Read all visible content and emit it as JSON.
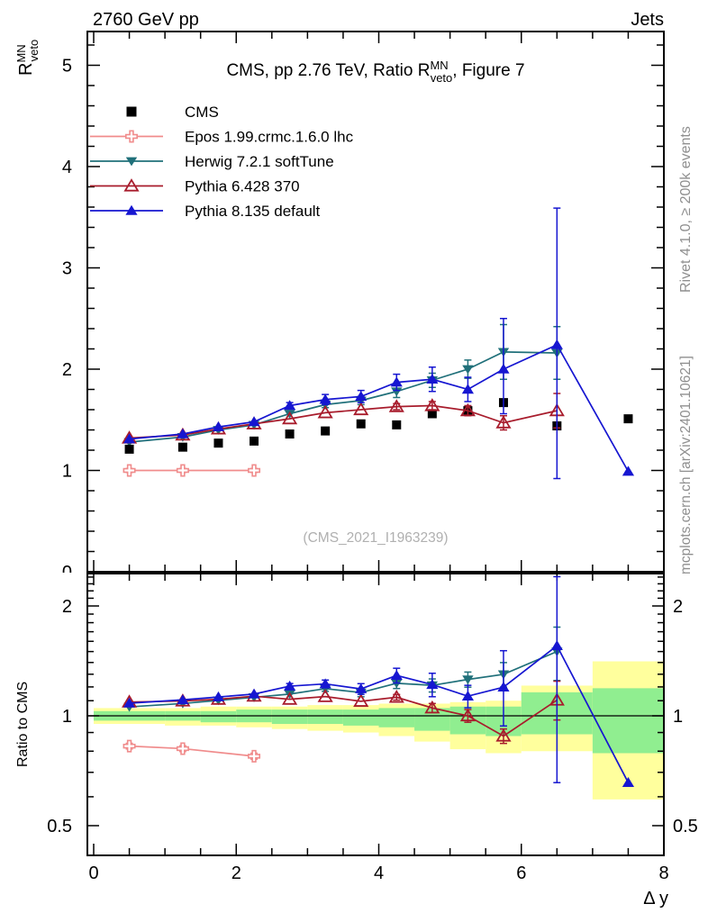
{
  "header": {
    "left": "2760 GeV pp",
    "right": "Jets"
  },
  "title": {
    "pre": "CMS, pp 2.76 TeV, Ratio R",
    "sup": "MN",
    "sub": "veto",
    "post": ", Figure 7"
  },
  "axis_labels": {
    "y_main": {
      "pre": "R",
      "sup": "MN",
      "sub": "veto"
    },
    "y_ratio": "Ratio to CMS",
    "x": "Δ y"
  },
  "credits": {
    "rivet": "Rivet 4.1.0, ≥ 200k events",
    "mcplots": "mcplots.cern.ch [arXiv:2401.10621]"
  },
  "watermark": "(CMS_2021_I1963239)",
  "colors": {
    "cms": "#000000",
    "epos": "#f08c8c",
    "herwig": "#20707a",
    "pythia6": "#a81c2c",
    "pythia8": "#1616d1",
    "band_green": "#90ee90",
    "band_yellow": "#ffff9d",
    "frame": "#000000"
  },
  "chart_data": {
    "type": "line",
    "title": "CMS, pp 2.76 TeV, Ratio R_veto^MN, Figure 7",
    "xlabel": "Δ y",
    "ylabel": "R_veto^MN",
    "ylabel_ratio": "Ratio to CMS",
    "xlim": [
      -0.09,
      8.03
    ],
    "x_ticks_major": [
      0,
      2,
      4,
      6,
      8
    ],
    "x_minor_step": 0.5,
    "main_panel": {
      "ylim": [
        0,
        5.33
      ],
      "yticks": [
        0,
        1,
        2,
        3,
        4,
        5
      ],
      "y_minor_step": 0.2,
      "grid": false
    },
    "ratio_panel": {
      "scale": "log2",
      "ylim": [
        0.415,
        2.45
      ],
      "yticks": [
        0.5,
        1,
        2
      ],
      "ytick_labels": [
        "0.5",
        "1",
        "2"
      ],
      "minor_ticks": [
        0.6,
        0.7,
        0.8,
        0.9,
        1.1,
        1.2,
        1.3,
        1.4,
        1.5,
        1.6,
        1.7,
        1.8,
        1.9,
        2.1,
        2.2,
        2.3,
        2.4
      ],
      "reference_line": 1.0
    },
    "legend_position": "top-left-inside",
    "series": [
      {
        "name": "CMS",
        "color": "#000000",
        "marker": "square-filled",
        "line": false,
        "x": [
          0.5,
          1.25,
          1.75,
          2.25,
          2.75,
          3.25,
          3.75,
          4.25,
          4.75,
          5.25,
          5.75,
          6.5,
          7.5
        ],
        "y": [
          1.21,
          1.23,
          1.27,
          1.29,
          1.36,
          1.39,
          1.46,
          1.45,
          1.56,
          1.59,
          1.67,
          1.44,
          1.51
        ],
        "yerr": [
          [
            0,
            0
          ],
          [
            0,
            0
          ],
          [
            0,
            0
          ],
          [
            0,
            0
          ],
          [
            0,
            0
          ],
          [
            0,
            0
          ],
          [
            0,
            0
          ],
          [
            0,
            0
          ],
          [
            0,
            0
          ],
          [
            0,
            0
          ],
          [
            0,
            0
          ],
          [
            0,
            0
          ],
          [
            0,
            0
          ]
        ],
        "ratio": null
      },
      {
        "name": "Epos 1.99.crmc.1.6.0 lhc",
        "color": "#f08c8c",
        "marker": "cross-open",
        "line": true,
        "x": [
          0.5,
          1.25,
          2.25
        ],
        "y": [
          1.0,
          1.0,
          1.0
        ],
        "yerr": [
          [
            0.02,
            0.02
          ],
          [
            0.02,
            0.02
          ],
          [
            0.02,
            0.02
          ]
        ],
        "ratio": [
          0.826,
          0.813,
          0.775
        ],
        "ratio_err": [
          [
            0.015,
            0.015
          ],
          [
            0.015,
            0.015
          ],
          [
            0.015,
            0.015
          ]
        ]
      },
      {
        "name": "Herwig 7.2.1 softTune",
        "color": "#20707a",
        "marker": "triangle-down-filled",
        "line": true,
        "x": [
          0.5,
          1.25,
          1.75,
          2.25,
          2.75,
          3.25,
          3.75,
          4.25,
          4.75,
          5.25,
          5.75,
          6.5
        ],
        "y": [
          1.28,
          1.33,
          1.4,
          1.45,
          1.56,
          1.65,
          1.69,
          1.78,
          1.89,
          2.0,
          2.17,
          2.16
        ],
        "yerr": [
          [
            0,
            0
          ],
          [
            0,
            0
          ],
          [
            0,
            0
          ],
          [
            0,
            0
          ],
          [
            0,
            0
          ],
          [
            0.03,
            0.03
          ],
          [
            0.04,
            0.04
          ],
          [
            0.06,
            0.06
          ],
          [
            0.07,
            0.07
          ],
          [
            0.09,
            0.09
          ],
          [
            0.27,
            0.27
          ],
          [
            0.26,
            0.26
          ]
        ],
        "ratio": [
          1.058,
          1.081,
          1.102,
          1.124,
          1.147,
          1.187,
          1.158,
          1.228,
          1.212,
          1.258,
          1.299,
          1.5
        ],
        "ratio_err": [
          [
            0,
            0
          ],
          [
            0,
            0
          ],
          [
            0,
            0
          ],
          [
            0,
            0
          ],
          [
            0,
            0
          ],
          [
            0.02,
            0.02
          ],
          [
            0.03,
            0.03
          ],
          [
            0.04,
            0.04
          ],
          [
            0.05,
            0.05
          ],
          [
            0.06,
            0.06
          ],
          [
            0.1,
            0.1
          ],
          [
            0.25,
            0.25
          ]
        ]
      },
      {
        "name": "Pythia 6.428 370",
        "color": "#a81c2c",
        "marker": "triangle-up-open",
        "line": true,
        "x": [
          0.5,
          1.25,
          1.75,
          2.25,
          2.75,
          3.25,
          3.75,
          4.25,
          4.75,
          5.25,
          5.75,
          6.5
        ],
        "y": [
          1.32,
          1.35,
          1.41,
          1.46,
          1.51,
          1.57,
          1.6,
          1.63,
          1.64,
          1.59,
          1.47,
          1.59
        ],
        "yerr": [
          [
            0,
            0
          ],
          [
            0,
            0
          ],
          [
            0,
            0
          ],
          [
            0,
            0
          ],
          [
            0,
            0
          ],
          [
            0,
            0
          ],
          [
            0,
            0
          ],
          [
            0.03,
            0.03
          ],
          [
            0.04,
            0.04
          ],
          [
            0.05,
            0.05
          ],
          [
            0.07,
            0.07
          ],
          [
            0.17,
            0.17
          ]
        ],
        "ratio": [
          1.091,
          1.098,
          1.11,
          1.132,
          1.11,
          1.129,
          1.096,
          1.124,
          1.051,
          1.0,
          0.88,
          1.104
        ],
        "ratio_err": [
          [
            0,
            0
          ],
          [
            0,
            0
          ],
          [
            0,
            0
          ],
          [
            0,
            0
          ],
          [
            0,
            0
          ],
          [
            0,
            0
          ],
          [
            0,
            0
          ],
          [
            0.02,
            0.02
          ],
          [
            0.03,
            0.03
          ],
          [
            0.04,
            0.04
          ],
          [
            0.04,
            0.04
          ],
          [
            0.13,
            0.14
          ]
        ]
      },
      {
        "name": "Pythia 8.135 default",
        "color": "#1616d1",
        "marker": "triangle-up-filled",
        "line": true,
        "x": [
          0.5,
          1.25,
          1.75,
          2.25,
          2.75,
          3.25,
          3.75,
          4.25,
          4.75,
          5.25,
          5.75,
          6.5,
          7.5
        ],
        "y": [
          1.31,
          1.36,
          1.43,
          1.48,
          1.64,
          1.7,
          1.73,
          1.87,
          1.9,
          1.8,
          2.0,
          2.24,
          0.99
        ],
        "yerr": [
          [
            0,
            0
          ],
          [
            0,
            0
          ],
          [
            0,
            0
          ],
          [
            0,
            0
          ],
          [
            0.03,
            0.03
          ],
          [
            0.05,
            0.05
          ],
          [
            0.06,
            0.06
          ],
          [
            0.08,
            0.08
          ],
          [
            0.12,
            0.12
          ],
          [
            0.12,
            0.12
          ],
          [
            0.44,
            0.5
          ],
          [
            1.32,
            1.35
          ],
          [
            0,
            0
          ]
        ],
        "ratio": [
          1.083,
          1.106,
          1.126,
          1.147,
          1.206,
          1.223,
          1.185,
          1.29,
          1.218,
          1.132,
          1.198,
          1.556,
          0.656
        ],
        "ratio_err": [
          [
            0,
            0
          ],
          [
            0,
            0
          ],
          [
            0,
            0
          ],
          [
            0,
            0
          ],
          [
            0.02,
            0.02
          ],
          [
            0.03,
            0.03
          ],
          [
            0.04,
            0.04
          ],
          [
            0.06,
            0.06
          ],
          [
            0.09,
            0.09
          ],
          [
            0.08,
            0.08
          ],
          [
            0.26,
            0.31
          ],
          [
            0.9,
            0.85
          ],
          [
            0,
            0
          ]
        ]
      }
    ],
    "uncertainty_bands": {
      "bins": [
        [
          0,
          1
        ],
        [
          1,
          1.5
        ],
        [
          1.5,
          2
        ],
        [
          2,
          2.5
        ],
        [
          2.5,
          3
        ],
        [
          3,
          3.5
        ],
        [
          3.5,
          4
        ],
        [
          4,
          4.5
        ],
        [
          4.5,
          5
        ],
        [
          5,
          5.5
        ],
        [
          5.5,
          6
        ],
        [
          6,
          7
        ],
        [
          7,
          8
        ]
      ],
      "yellow": [
        [
          0.95,
          1.05
        ],
        [
          0.94,
          1.05
        ],
        [
          0.94,
          1.06
        ],
        [
          0.93,
          1.06
        ],
        [
          0.92,
          1.06
        ],
        [
          0.91,
          1.07
        ],
        [
          0.9,
          1.07
        ],
        [
          0.88,
          1.08
        ],
        [
          0.85,
          1.08
        ],
        [
          0.81,
          1.09
        ],
        [
          0.79,
          1.1
        ],
        [
          0.8,
          1.21
        ],
        [
          0.59,
          1.41
        ]
      ],
      "green": [
        [
          0.97,
          1.03
        ],
        [
          0.97,
          1.03
        ],
        [
          0.96,
          1.03
        ],
        [
          0.96,
          1.04
        ],
        [
          0.95,
          1.04
        ],
        [
          0.95,
          1.04
        ],
        [
          0.94,
          1.04
        ],
        [
          0.93,
          1.05
        ],
        [
          0.91,
          1.05
        ],
        [
          0.89,
          1.06
        ],
        [
          0.88,
          1.06
        ],
        [
          0.89,
          1.16
        ],
        [
          0.79,
          1.19
        ]
      ]
    }
  }
}
